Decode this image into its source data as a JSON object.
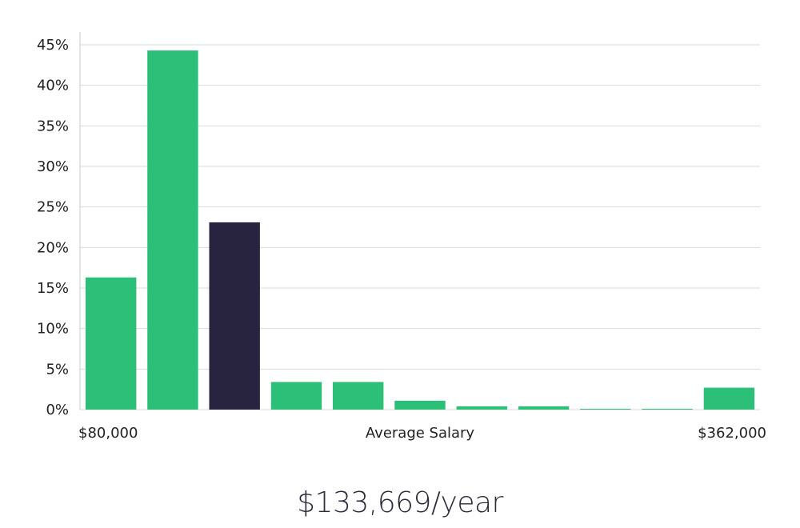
{
  "chart_data": {
    "type": "bar",
    "categories": [
      "bin-1",
      "bin-2",
      "bin-3",
      "bin-4",
      "bin-5",
      "bin-6",
      "bin-7",
      "bin-8",
      "bin-9",
      "bin-10",
      "bin-11"
    ],
    "values": [
      16.3,
      44.3,
      23.1,
      3.4,
      3.4,
      1.1,
      0.4,
      0.4,
      0.1,
      0.1,
      2.7
    ],
    "highlight_index": 2,
    "ylim": [
      0,
      45
    ],
    "yticks": [
      0,
      5,
      10,
      15,
      20,
      25,
      30,
      35,
      40,
      45
    ],
    "ytick_suffix": "%",
    "grid": true,
    "x_min_label": "$80,000",
    "x_max_label": "$362,000",
    "xlabel": "Average Salary",
    "colors": {
      "bar": "#2bbf77",
      "highlight": "#28243f",
      "grid": "#d9d9d9",
      "axis": "#cccccc"
    }
  },
  "summary": "$133,669/year"
}
